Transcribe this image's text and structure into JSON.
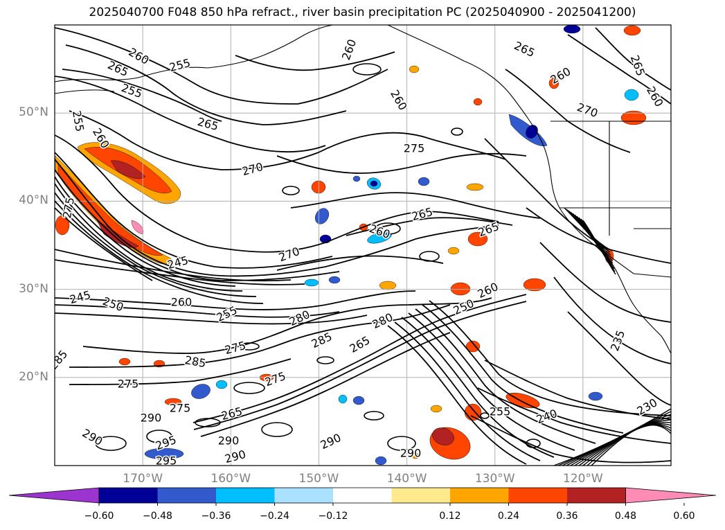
{
  "title": "2025040700 F048 850 hPa refract., river basin precipitation PC (2025040900 - 2025041200)",
  "map": {
    "region": "North-east Pacific and western North America",
    "projection": "equirectangular",
    "lat_range": [
      10,
      60
    ],
    "lon_range": [
      -180,
      -110
    ],
    "grid": true,
    "lat_labels": [
      "20°N",
      "30°N",
      "40°N",
      "50°N"
    ],
    "lon_labels": [
      "170°W",
      "160°W",
      "150°W",
      "140°W",
      "130°W",
      "120°W"
    ],
    "coastline_color": "#000000",
    "contour_color": "#000000",
    "contour_labels": [
      {
        "text": "260"
      },
      {
        "text": "265"
      },
      {
        "text": "255"
      },
      {
        "text": "255"
      },
      {
        "text": "260"
      },
      {
        "text": "265"
      },
      {
        "text": "260"
      },
      {
        "text": "260"
      },
      {
        "text": "265"
      },
      {
        "text": "275"
      },
      {
        "text": "270"
      },
      {
        "text": "265"
      },
      {
        "text": "260"
      },
      {
        "text": "270"
      },
      {
        "text": "265"
      },
      {
        "text": "275"
      },
      {
        "text": "245"
      },
      {
        "text": "245"
      },
      {
        "text": "250"
      },
      {
        "text": "260"
      },
      {
        "text": "255"
      },
      {
        "text": "280"
      },
      {
        "text": "280"
      },
      {
        "text": "285"
      },
      {
        "text": "265"
      },
      {
        "text": "250"
      },
      {
        "text": "260"
      },
      {
        "text": "275"
      },
      {
        "text": "285"
      },
      {
        "text": "285"
      },
      {
        "text": "275"
      },
      {
        "text": "275"
      },
      {
        "text": "275"
      },
      {
        "text": "265"
      },
      {
        "text": "290"
      },
      {
        "text": "290"
      },
      {
        "text": "295"
      },
      {
        "text": "290"
      },
      {
        "text": "290"
      },
      {
        "text": "290"
      },
      {
        "text": "295"
      },
      {
        "text": "290"
      },
      {
        "text": "255"
      },
      {
        "text": "240"
      },
      {
        "text": "235"
      },
      {
        "text": "230"
      },
      {
        "text": "260"
      },
      {
        "text": "270"
      },
      {
        "text": "265"
      },
      {
        "text": "260"
      },
      {
        "text": "255"
      }
    ]
  },
  "colorbar": {
    "colors": [
      "#9c35d0",
      "#000096",
      "#325acd",
      "#00beff",
      "#aae1ff",
      "#ffffff",
      "#ffe98d",
      "#ffa500",
      "#ff4500",
      "#b22222",
      "#ff8cb4"
    ],
    "ticks": [
      "−0.60",
      "−0.48",
      "−0.36",
      "−0.24",
      "−0.12",
      "0.12",
      "0.24",
      "0.36",
      "0.48",
      "0.60"
    ],
    "extend": "both"
  }
}
